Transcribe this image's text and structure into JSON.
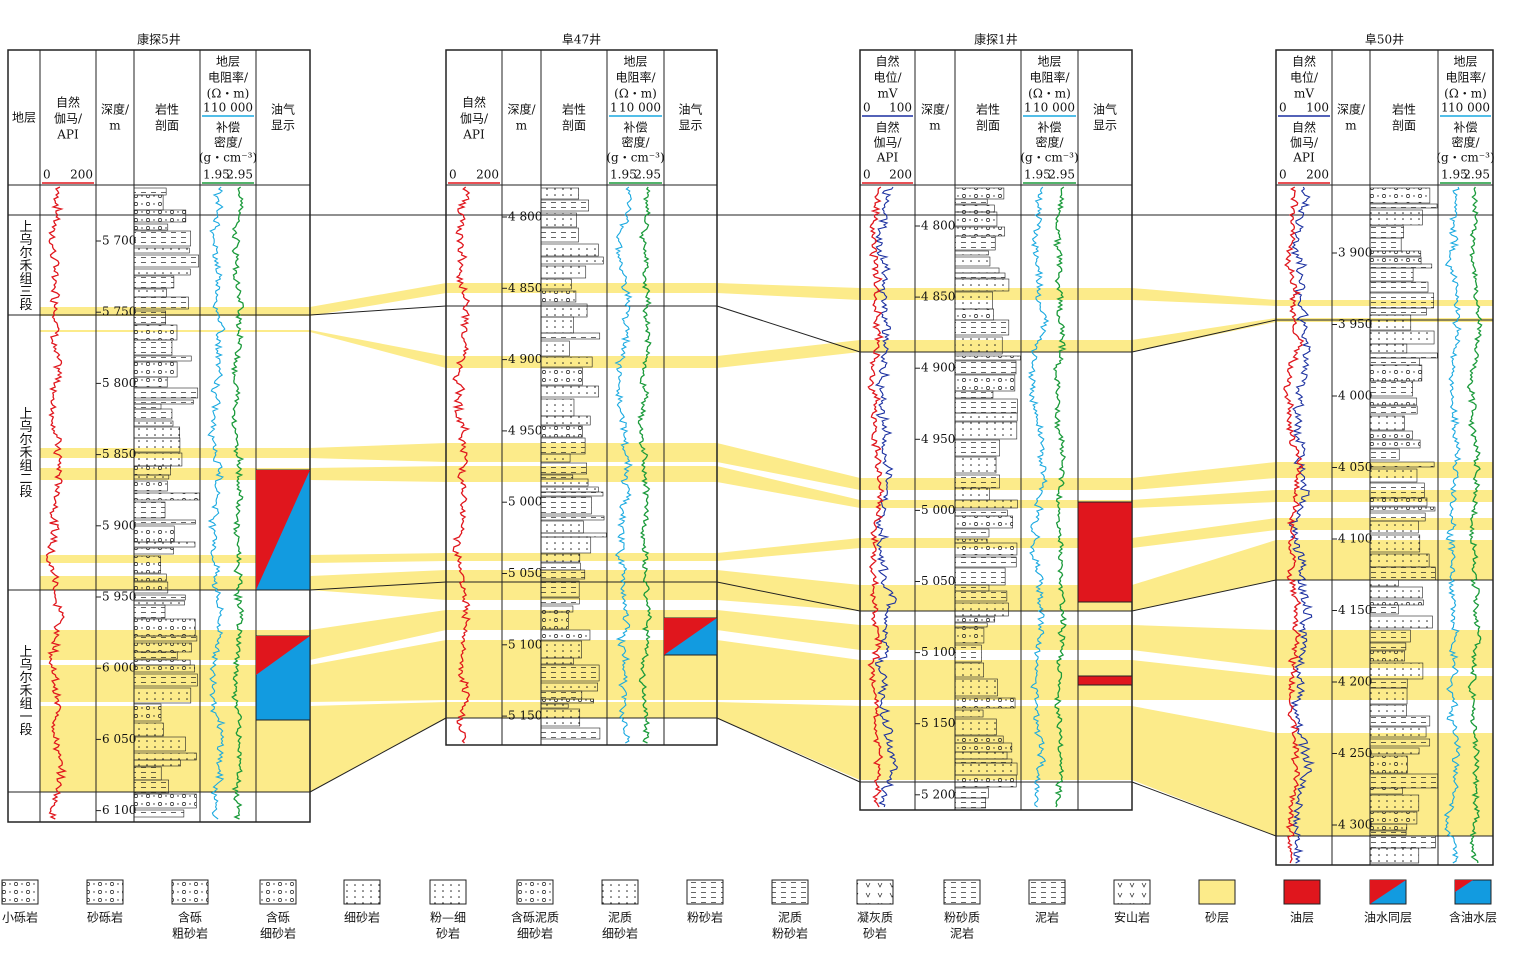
{
  "wells": [
    {
      "name": "康探5井",
      "headers": [
        {
          "lines": [
            "地层"
          ]
        },
        {
          "lines": [
            "自然",
            "伽马/",
            "API"
          ],
          "scale": [
            "0",
            "200"
          ]
        },
        {
          "lines": [
            "深度/",
            "m"
          ]
        },
        {
          "lines": [
            "岩性",
            "剖面"
          ]
        },
        {
          "lines": [
            "地层",
            "电阻率/",
            "(Ω・m)"
          ],
          "scale": [
            "1",
            "10 000"
          ],
          "lines2": [
            "补偿",
            "密度/",
            "(g・cm⁻³)"
          ],
          "scale2": [
            "1.95",
            "2.95"
          ]
        },
        {
          "lines": [
            "油气",
            "显示"
          ]
        }
      ],
      "depth_ticks": [
        "5 700",
        "5 750",
        "5 800",
        "5 850",
        "5 900",
        "5 950",
        "6 000",
        "6 050",
        "6 100"
      ],
      "formations": [
        "上乌尔禾组三段",
        "上乌尔禾组二段",
        "上乌尔禾组一段"
      ]
    },
    {
      "name": "阜47井",
      "headers": [
        {
          "lines": [
            "自然",
            "伽马/",
            "API"
          ],
          "scale": [
            "0",
            "200"
          ]
        },
        {
          "lines": [
            "深度/",
            "m"
          ]
        },
        {
          "lines": [
            "岩性",
            "剖面"
          ]
        },
        {
          "lines": [
            "地层",
            "电阻率/",
            "(Ω・m)"
          ],
          "scale": [
            "1",
            "10 000"
          ],
          "lines2": [
            "补偿",
            "密度/",
            "(g・cm⁻³)"
          ],
          "scale2": [
            "1.95",
            "2.95"
          ]
        },
        {
          "lines": [
            "油气",
            "显示"
          ]
        }
      ],
      "depth_ticks": [
        "4 800",
        "4 850",
        "4 900",
        "4 950",
        "5 000",
        "5 050",
        "5 100",
        "5 150"
      ]
    },
    {
      "name": "康探1井",
      "headers": [
        {
          "lines": [
            "自然",
            "电位/",
            "mV"
          ],
          "scale": [
            "0",
            "100"
          ],
          "lines2": [
            "自然",
            "伽马/",
            "API"
          ],
          "scale2": [
            "0",
            "200"
          ]
        },
        {
          "lines": [
            "深度/",
            "m"
          ]
        },
        {
          "lines": [
            "岩性",
            "剖面"
          ]
        },
        {
          "lines": [
            "地层",
            "电阻率/",
            "(Ω・m)"
          ],
          "scale": [
            "1",
            "10 000"
          ],
          "lines2": [
            "补偿",
            "密度/",
            "(g・cm⁻³)"
          ],
          "scale2": [
            "1.95",
            "2.95"
          ]
        },
        {
          "lines": [
            "油气",
            "显示"
          ]
        }
      ],
      "depth_ticks": [
        "4 800",
        "4 850",
        "4 900",
        "4 950",
        "5 000",
        "5 050",
        "5 100",
        "5 150",
        "5 200"
      ]
    },
    {
      "name": "阜50井",
      "headers": [
        {
          "lines": [
            "自然",
            "电位/",
            "mV"
          ],
          "scale": [
            "0",
            "100"
          ],
          "lines2": [
            "自然",
            "伽马/",
            "API"
          ],
          "scale2": [
            "0",
            "200"
          ]
        },
        {
          "lines": [
            "深度/",
            "m"
          ]
        },
        {
          "lines": [
            "岩性",
            "剖面"
          ]
        },
        {
          "lines": [
            "地层",
            "电阻率/",
            "(Ω・m)"
          ],
          "scale": [
            "1",
            "10 000"
          ],
          "lines2": [
            "补偿",
            "密度/",
            "(g・cm⁻³)"
          ],
          "scale2": [
            "1.95",
            "2.95"
          ]
        }
      ],
      "depth_ticks": [
        "3 900",
        "3 950",
        "4 000",
        "4 050",
        "4 100",
        "4 150",
        "4 200",
        "4 250",
        "4 300"
      ]
    }
  ],
  "legend": [
    {
      "label": [
        "小砾岩"
      ]
    },
    {
      "label": [
        "砂砾岩"
      ]
    },
    {
      "label": [
        "含砾",
        "粗砂岩"
      ]
    },
    {
      "label": [
        "含砾",
        "细砂岩"
      ]
    },
    {
      "label": [
        "细砂岩"
      ]
    },
    {
      "label": [
        "粉—细",
        "砂岩"
      ]
    },
    {
      "label": [
        "含砾泥质",
        "细砂岩"
      ]
    },
    {
      "label": [
        "泥质",
        "细砂岩"
      ]
    },
    {
      "label": [
        "粉砂岩"
      ]
    },
    {
      "label": [
        "泥质",
        "粉砂岩"
      ]
    },
    {
      "label": [
        "凝灰质",
        "砂岩"
      ]
    },
    {
      "label": [
        "粉砂质",
        "泥岩"
      ]
    },
    {
      "label": [
        "泥岩"
      ]
    },
    {
      "label": [
        "安山岩"
      ]
    },
    {
      "label": [
        "砂层"
      ]
    },
    {
      "label": [
        "油层"
      ]
    },
    {
      "label": [
        "油水同层"
      ]
    },
    {
      "label": [
        "含油水层"
      ]
    }
  ]
}
